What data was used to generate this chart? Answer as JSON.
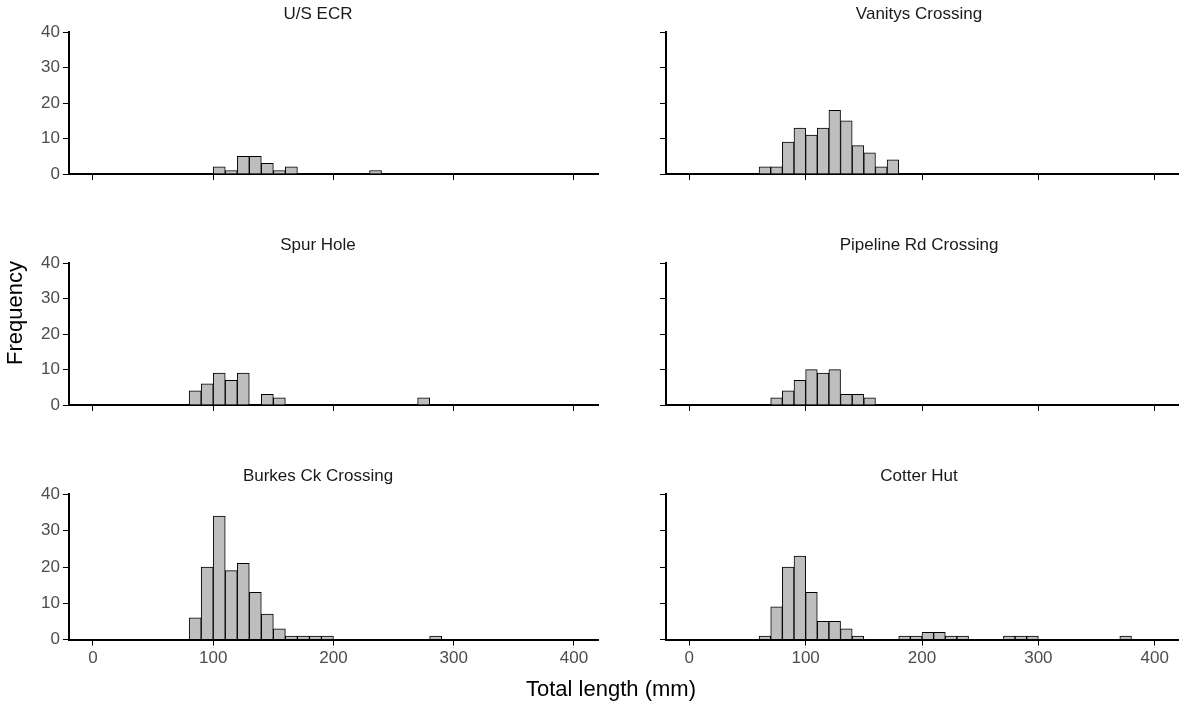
{
  "chart_data": [
    {
      "type": "histogram",
      "title": "U/S ECR",
      "bins": [
        100,
        110,
        120,
        130,
        140,
        150,
        160,
        170,
        180,
        190,
        200,
        210,
        220,
        230,
        240
      ],
      "values": [
        2,
        1,
        5,
        5,
        3,
        1,
        2,
        0,
        0,
        0,
        0,
        0,
        0,
        1
      ],
      "color": "#bebebe",
      "xlim": [
        -20,
        420
      ],
      "ylim": [
        0,
        40
      ],
      "xticks": [
        0,
        100,
        200,
        300,
        400
      ],
      "yticks": [
        0,
        10,
        20,
        30,
        40
      ],
      "tick_labels": "y"
    },
    {
      "type": "histogram",
      "title": "Vanitys Crossing",
      "bins": [
        60,
        70,
        80,
        90,
        100,
        110,
        120,
        130,
        140,
        150,
        160,
        170,
        180
      ],
      "values": [
        2,
        2,
        9,
        13,
        11,
        13,
        18,
        15,
        8,
        6,
        2,
        4
      ],
      "color": "#bebebe",
      "xlim": [
        -20,
        420
      ],
      "ylim": [
        0,
        40
      ],
      "xticks": [
        0,
        100,
        200,
        300,
        400
      ],
      "yticks": [
        0,
        10,
        20,
        30,
        40
      ],
      "tick_labels": false
    },
    {
      "type": "histogram",
      "title": "Spur Hole",
      "ylabel": "Frequency",
      "bins": [
        80,
        90,
        100,
        110,
        120,
        130,
        140,
        150,
        160,
        170,
        180,
        190,
        200,
        210,
        220,
        230,
        240,
        250,
        260,
        270,
        280
      ],
      "values": [
        4,
        6,
        9,
        7,
        9,
        0,
        3,
        2,
        0,
        0,
        0,
        0,
        0,
        0,
        0,
        0,
        0,
        0,
        0,
        2
      ],
      "color": "#bebebe",
      "xlim": [
        -20,
        420
      ],
      "ylim": [
        0,
        40
      ],
      "xticks": [
        0,
        100,
        200,
        300,
        400
      ],
      "yticks": [
        0,
        10,
        20,
        30,
        40
      ],
      "tick_labels": "y"
    },
    {
      "type": "histogram",
      "title": "Pipeline Rd Crossing",
      "bins": [
        70,
        80,
        90,
        100,
        110,
        120,
        130,
        140,
        150,
        160,
        170
      ],
      "values": [
        2,
        4,
        7,
        10,
        9,
        10,
        3,
        3,
        2,
        0
      ],
      "color": "#bebebe",
      "xlim": [
        -20,
        420
      ],
      "ylim": [
        0,
        40
      ],
      "xticks": [
        0,
        100,
        200,
        300,
        400
      ],
      "yticks": [
        0,
        10,
        20,
        30,
        40
      ],
      "tick_labels": false
    },
    {
      "type": "histogram",
      "title": "Burkes Ck Crossing",
      "xlabel": "Total length (mm)",
      "bins": [
        80,
        90,
        100,
        110,
        120,
        130,
        140,
        150,
        160,
        170,
        180,
        190,
        200,
        210,
        220,
        230,
        240,
        250,
        260,
        270,
        280,
        290
      ],
      "values": [
        6,
        20,
        34,
        19,
        21,
        13,
        7,
        3,
        1,
        1,
        1,
        1,
        0,
        0,
        0,
        0,
        0,
        0,
        0,
        0,
        1
      ],
      "color": "#bebebe",
      "xlim": [
        -20,
        420
      ],
      "ylim": [
        0,
        40
      ],
      "xticks": [
        0,
        100,
        200,
        300,
        400
      ],
      "yticks": [
        0,
        10,
        20,
        30,
        40
      ]
    },
    {
      "type": "histogram",
      "title": "Cotter Hut",
      "bins": [
        60,
        70,
        80,
        90,
        100,
        110,
        120,
        130,
        140,
        150,
        160,
        170,
        180,
        190,
        200,
        210,
        220,
        230,
        240,
        250,
        260,
        270,
        280,
        290,
        300,
        310,
        320,
        330,
        340,
        350,
        360,
        370,
        380
      ],
      "values": [
        1,
        9,
        20,
        23,
        13,
        5,
        5,
        3,
        1,
        0,
        0,
        0,
        1,
        1,
        2,
        2,
        1,
        1,
        0,
        0,
        0,
        1,
        1,
        1,
        0,
        0,
        0,
        0,
        0,
        0,
        0,
        1
      ],
      "color": "#bebebe",
      "xlim": [
        -20,
        420
      ],
      "ylim": [
        0,
        40
      ],
      "xticks": [
        0,
        100,
        200,
        300,
        400
      ],
      "yticks": [
        0,
        10,
        20,
        30,
        40
      ],
      "tick_labels": "x"
    }
  ]
}
